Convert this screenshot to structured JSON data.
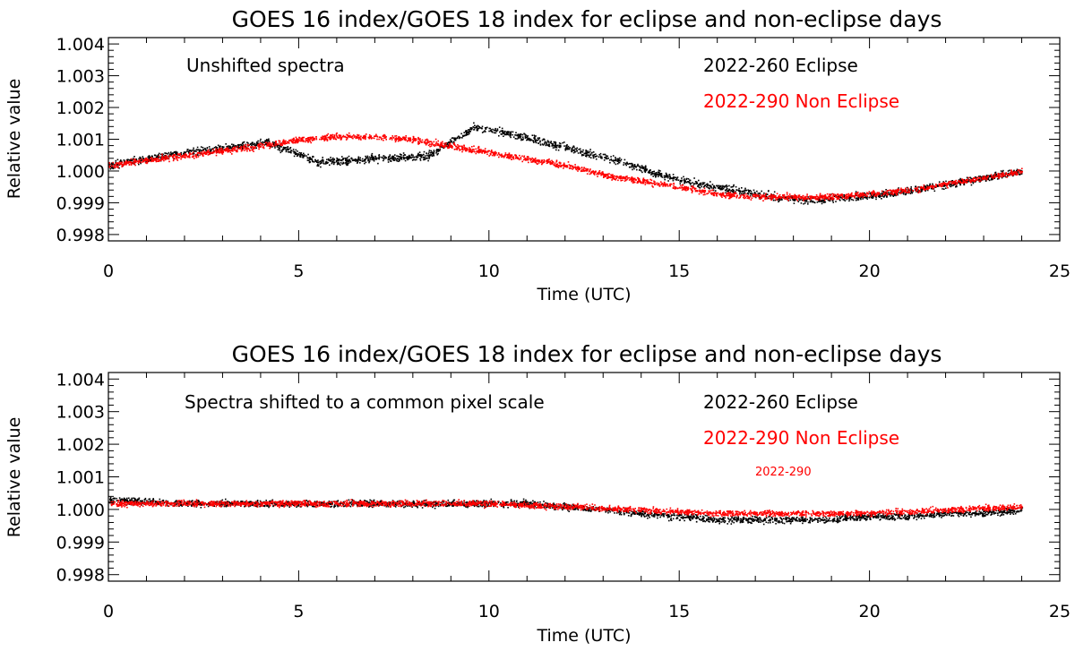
{
  "colors": {
    "eclipse": "#000000",
    "non_eclipse": "#ff0000",
    "axis": "#000000",
    "background": "#ffffff"
  },
  "chart_data": [
    {
      "type": "scatter",
      "title": "GOES 16 index/GOES 18 index for eclipse and non-eclipse days",
      "xlabel": "Time (UTC)",
      "ylabel": "Relative value",
      "xlim": [
        0,
        25
      ],
      "ylim": [
        0.9978,
        1.0042
      ],
      "xticks": [
        0,
        5,
        10,
        15,
        20,
        25
      ],
      "xtick_labels": [
        "0",
        "5",
        "10",
        "15",
        "20",
        "25"
      ],
      "yticks": [
        0.998,
        0.999,
        1.0,
        1.001,
        1.002,
        1.003,
        1.004
      ],
      "ytick_labels": [
        "0.998",
        "0.999",
        "1.000",
        "1.001",
        "1.002",
        "1.003",
        "1.004"
      ],
      "grid": false,
      "annotations": [
        {
          "text": "Unshifted spectra",
          "color": "#000000"
        }
      ],
      "legend_placement": "top-right",
      "series": [
        {
          "name": "2022-260 Eclipse",
          "color": "#000000",
          "x": [
            0,
            2,
            4.2,
            5.5,
            7,
            8.4,
            9.6,
            10.5,
            11.5,
            12.5,
            13.5,
            14.5,
            15.5,
            16.5,
            17.5,
            18.5,
            19.5,
            20.5,
            21.5,
            22.5,
            24
          ],
          "y": [
            1.0002,
            1.0006,
            1.0009,
            1.0003,
            1.0004,
            1.0005,
            1.0014,
            1.0012,
            1.0009,
            1.0006,
            1.0003,
            0.9999,
            0.9996,
            0.9994,
            0.9992,
            0.9991,
            0.9992,
            0.9993,
            0.9995,
            0.9997,
            1.0
          ],
          "spread": 0.00015
        },
        {
          "name": "2022-290 Non Eclipse",
          "color": "#ff0000",
          "x": [
            0,
            2,
            4,
            5,
            6,
            7,
            8,
            9,
            10,
            11,
            12,
            13,
            14,
            15,
            16,
            17,
            18,
            19,
            20,
            21,
            22,
            23,
            24
          ],
          "y": [
            1.0002,
            1.0005,
            1.0008,
            1.001,
            1.0011,
            1.0011,
            1.001,
            1.0008,
            1.0006,
            1.0004,
            1.0002,
            0.9999,
            0.9997,
            0.9995,
            0.9993,
            0.9992,
            0.9992,
            0.9992,
            0.9993,
            0.9994,
            0.9996,
            0.9998,
            1.0
          ],
          "spread": 0.00012
        }
      ]
    },
    {
      "type": "scatter",
      "title": "GOES 16 index/GOES 18 index for eclipse and non-eclipse days",
      "xlabel": "Time (UTC)",
      "ylabel": "Relative value",
      "xlim": [
        0,
        25
      ],
      "ylim": [
        0.9978,
        1.0042
      ],
      "xticks": [
        0,
        5,
        10,
        15,
        20,
        25
      ],
      "xtick_labels": [
        "0",
        "5",
        "10",
        "15",
        "20",
        "25"
      ],
      "yticks": [
        0.998,
        0.999,
        1.0,
        1.001,
        1.002,
        1.003,
        1.004
      ],
      "ytick_labels": [
        "0.998",
        "0.999",
        "1.000",
        "1.001",
        "1.002",
        "1.003",
        "1.004"
      ],
      "grid": false,
      "annotations": [
        {
          "text": "Spectra shifted to a common pixel scale",
          "color": "#000000"
        },
        {
          "text": "2022-290",
          "color": "#ff0000"
        }
      ],
      "legend_placement": "top-right",
      "series": [
        {
          "name": "2022-260 Eclipse",
          "color": "#000000",
          "x": [
            0,
            2,
            4.2,
            5.5,
            7,
            8.4,
            9.6,
            11,
            12,
            13,
            14,
            15,
            16,
            17,
            18,
            19,
            20,
            21,
            22,
            23,
            24
          ],
          "y": [
            1.0003,
            1.0002,
            1.0002,
            1.0002,
            1.0002,
            1.0002,
            1.0002,
            1.0002,
            1.0001,
            1.0,
            0.9999,
            0.9998,
            0.9997,
            0.9997,
            0.9997,
            0.9997,
            0.9998,
            0.9998,
            0.9999,
            0.9999,
            1.0
          ],
          "spread": 0.00013
        },
        {
          "name": "2022-290 Non Eclipse",
          "color": "#ff0000",
          "x": [
            0,
            2,
            4,
            6,
            8,
            10,
            12,
            14,
            16,
            18,
            20,
            22,
            24
          ],
          "y": [
            1.0002,
            1.0002,
            1.0002,
            1.0002,
            1.0002,
            1.0002,
            1.0001,
            1.0,
            0.9999,
            0.9999,
            0.9999,
            1.0,
            1.0001
          ],
          "spread": 0.00011
        }
      ]
    }
  ]
}
